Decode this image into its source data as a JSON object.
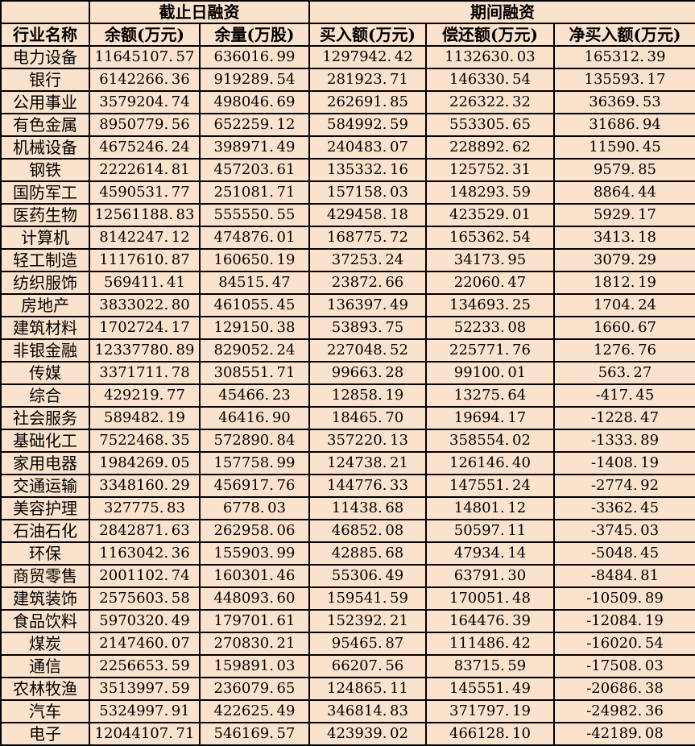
{
  "chart_data": {
    "type": "table",
    "header_groups": {
      "industry_spacer": "",
      "cutoff": "截止日融资",
      "period": "期间融资"
    },
    "columns": [
      "行业名称",
      "余额(万元)",
      "余量(万股)",
      "买入额(万元)",
      "偿还额(万元)",
      "净买入额(万元)"
    ],
    "rows": [
      [
        "电力设备",
        "11645107.57",
        "636016.99",
        "1297942.42",
        "1132630.03",
        "165312.39"
      ],
      [
        "银行",
        "6142266.36",
        "919289.54",
        "281923.71",
        "146330.54",
        "135593.17"
      ],
      [
        "公用事业",
        "3579204.74",
        "498046.69",
        "262691.85",
        "226322.32",
        "36369.53"
      ],
      [
        "有色金属",
        "8950779.56",
        "652259.12",
        "584992.59",
        "553305.65",
        "31686.94"
      ],
      [
        "机械设备",
        "4675246.24",
        "398971.49",
        "240483.07",
        "228892.62",
        "11590.45"
      ],
      [
        "钢铁",
        "2222614.81",
        "457203.61",
        "135332.16",
        "125752.31",
        "9579.85"
      ],
      [
        "国防军工",
        "4590531.77",
        "251081.71",
        "157158.03",
        "148293.59",
        "8864.44"
      ],
      [
        "医药生物",
        "12561188.83",
        "555550.55",
        "429458.18",
        "423529.01",
        "5929.17"
      ],
      [
        "计算机",
        "8142247.12",
        "474876.01",
        "168775.72",
        "165362.54",
        "3413.18"
      ],
      [
        "轻工制造",
        "1117610.87",
        "160650.19",
        "37253.24",
        "34173.95",
        "3079.29"
      ],
      [
        "纺织服饰",
        "569411.41",
        "84515.47",
        "23872.66",
        "22060.47",
        "1812.19"
      ],
      [
        "房地产",
        "3833022.80",
        "461055.45",
        "136397.49",
        "134693.25",
        "1704.24"
      ],
      [
        "建筑材料",
        "1702724.17",
        "129150.38",
        "53893.75",
        "52233.08",
        "1660.67"
      ],
      [
        "非银金融",
        "12337780.89",
        "829052.24",
        "227048.52",
        "225771.76",
        "1276.76"
      ],
      [
        "传媒",
        "3371711.78",
        "308551.71",
        "99663.28",
        "99100.01",
        "563.27"
      ],
      [
        "综合",
        "429219.77",
        "45466.23",
        "12858.19",
        "13275.64",
        "-417.45"
      ],
      [
        "社会服务",
        "589482.19",
        "46416.90",
        "18465.70",
        "19694.17",
        "-1228.47"
      ],
      [
        "基础化工",
        "7522468.35",
        "572890.84",
        "357220.13",
        "358554.02",
        "-1333.89"
      ],
      [
        "家用电器",
        "1984269.05",
        "157758.99",
        "124738.21",
        "126146.40",
        "-1408.19"
      ],
      [
        "交通运输",
        "3348160.29",
        "456917.76",
        "144776.33",
        "147551.24",
        "-2774.92"
      ],
      [
        "美容护理",
        "327775.83",
        "6778.03",
        "11438.68",
        "14801.12",
        "-3362.45"
      ],
      [
        "石油石化",
        "2842871.63",
        "262958.06",
        "46852.08",
        "50597.11",
        "-3745.03"
      ],
      [
        "环保",
        "1163042.36",
        "155903.99",
        "42885.68",
        "47934.14",
        "-5048.45"
      ],
      [
        "商贸零售",
        "2001102.74",
        "160301.46",
        "55306.49",
        "63791.30",
        "-8484.81"
      ],
      [
        "建筑装饰",
        "2575603.58",
        "448093.60",
        "159541.59",
        "170051.48",
        "-10509.89"
      ],
      [
        "食品饮料",
        "5970320.49",
        "179701.61",
        "152392.21",
        "164476.39",
        "-12084.19"
      ],
      [
        "煤炭",
        "2147460.07",
        "270830.21",
        "95465.87",
        "111486.42",
        "-16020.54"
      ],
      [
        "通信",
        "2256653.59",
        "159891.03",
        "66207.56",
        "83715.59",
        "-17508.03"
      ],
      [
        "农林牧渔",
        "3513997.59",
        "236079.65",
        "124865.11",
        "145551.49",
        "-20686.38"
      ],
      [
        "汽车",
        "5324997.91",
        "422625.49",
        "346814.83",
        "371797.19",
        "-24982.36"
      ],
      [
        "电子",
        "12044107.71",
        "546169.57",
        "423939.02",
        "466128.10",
        "-42189.08"
      ]
    ],
    "layout_hints": {
      "grid": "on",
      "negative_values_start_at_row": "综合"
    }
  },
  "colors": {
    "cell_background": "#fbe2cd",
    "border": "#000000",
    "text": "#000000"
  }
}
